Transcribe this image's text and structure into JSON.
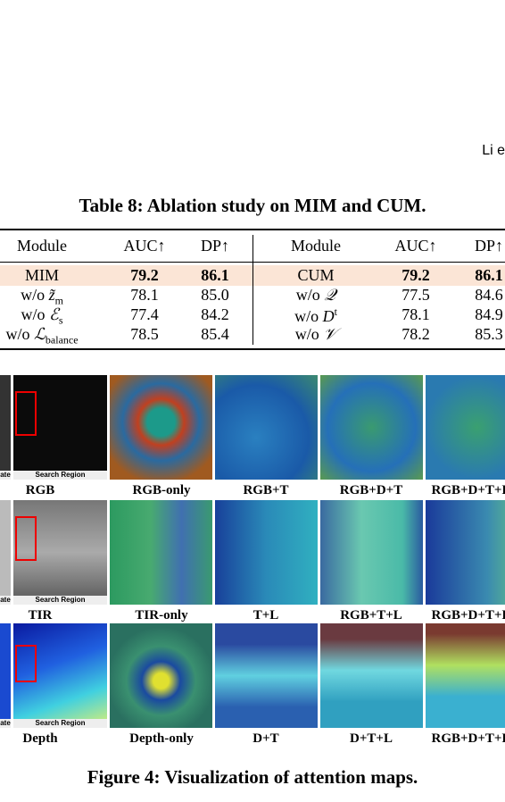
{
  "header": {
    "running_head": "Li e"
  },
  "table": {
    "caption": "Table 8: Ablation study on MIM and CUM.",
    "columns": [
      "Module",
      "AUC↑",
      "DP↑",
      "Module",
      "AUC↑",
      "DP↑"
    ],
    "rows": [
      [
        {
          "prefix": "MIM"
        },
        "79.2",
        "86.1",
        {
          "prefix": "CUM"
        },
        "79.2",
        "86.1"
      ],
      [
        {
          "prefix": "w/o",
          "symbol": "z̃",
          "sub": "m"
        },
        "78.1",
        "85.0",
        {
          "prefix": "w/o",
          "symbol": "𝒬"
        },
        "77.5",
        "84.6"
      ],
      [
        {
          "prefix": "w/o",
          "symbol": "ℰ",
          "sub": "s"
        },
        "77.4",
        "84.2",
        {
          "prefix": "w/o",
          "symbol": "D",
          "sup": "t"
        },
        "78.1",
        "84.9"
      ],
      [
        {
          "prefix": "w/o",
          "symbol": "ℒ",
          "sub": "balance"
        },
        "78.5",
        "85.4",
        {
          "prefix": "w/o",
          "symbol": "𝒱"
        },
        "78.2",
        "85.3"
      ]
    ]
  },
  "figure": {
    "rows": [
      {
        "template_tag": "ate",
        "search_tag": "Search Region",
        "labels": [
          "RGB",
          "RGB-only",
          "RGB+T",
          "RGB+D+T",
          "RGB+D+T+L"
        ]
      },
      {
        "template_tag": "ate",
        "search_tag": "Search Region",
        "labels": [
          "TIR",
          "TIR-only",
          "T+L",
          "RGB+T+L",
          "RGB+D+T+L"
        ]
      },
      {
        "template_tag": "ate",
        "search_tag": "Search Region",
        "labels": [
          "Depth",
          "Depth-only",
          "D+T",
          "D+T+L",
          "RGB+D+T+L"
        ]
      }
    ],
    "caption": "Figure 4: Visualization of attention maps."
  }
}
